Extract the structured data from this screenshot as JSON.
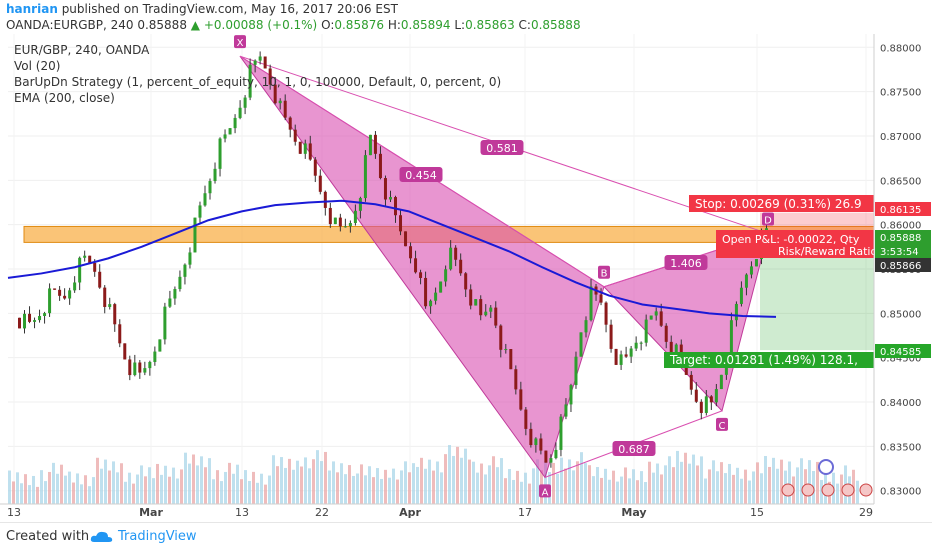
{
  "header": {
    "author": "hanrian",
    "published_text": "published on TradingView.com, May 16, 2017 20:06 EST",
    "symbol": "OANDA:EURGBP, 240",
    "last": "0.85888",
    "change": "+0.00088 (+0.1%)",
    "o_label": "O:",
    "o_value": "0.85876",
    "h_label": "H:",
    "h_value": "0.85894",
    "l_label": "L:",
    "l_value": "0.85863",
    "c_label": "C:",
    "c_value": "0.85888"
  },
  "legend": {
    "line1": "EUR/GBP, 240, OANDA",
    "line2": "Vol (20)",
    "line3": "BarUpDn Strategy (1, percent_of_equity, 10, 1, 0, 100000, Default, 0, percent, 0)",
    "line4": "EMA (200, close)"
  },
  "footer": {
    "made": "Created with",
    "brand": "TradingView"
  },
  "colors": {
    "pattern_fill": "#d94fb0",
    "ema": "#1a1ad6",
    "zone": "#f8b04a",
    "stop": "#f23645",
    "target": "#26a629",
    "candle_up": "#2e9e2e",
    "candle_down": "#8b1a1a"
  },
  "chart_data": {
    "type": "candlestick",
    "x_ticks": [
      "13",
      "Mar",
      "13",
      "22",
      "Apr",
      "17",
      "May",
      "15",
      "29"
    ],
    "y_ticks": [
      "0.88000",
      "0.87500",
      "0.87000",
      "0.86500",
      "0.86000",
      "0.85500",
      "0.85000",
      "0.84500",
      "0.84000",
      "0.83500",
      "0.83000"
    ],
    "ylim": [
      0.8285,
      0.8815
    ],
    "price_tags": [
      "0.86135",
      "0.85888",
      "3:53:54",
      "0.85866",
      "0.84585"
    ],
    "pattern_points": [
      {
        "label": "X",
        "price": 0.879
      },
      {
        "label": "A",
        "price": 0.8315
      },
      {
        "label": "B",
        "price": 0.853
      },
      {
        "label": "C",
        "price": 0.839
      },
      {
        "label": "D",
        "price": 0.859
      }
    ],
    "ratios": [
      "0.454",
      "0.581",
      "1.406",
      "0.687"
    ],
    "zone": [
      0.858,
      0.8598
    ],
    "trade": {
      "stop_text": "Stop: 0.00269 (0.31%) 26.9",
      "open_text": "Open P&L: -0.00022, Qty",
      "rr_text": "Risk/Reward Ratio:",
      "target_text": "Target: 0.01281 (1.49%) 128.1,",
      "entry": 0.85866,
      "stop": 0.86135,
      "target": 0.84585
    },
    "ohlc_close_path": [
      0.8495,
      0.8485,
      0.8505,
      0.852,
      0.8515,
      0.8545,
      0.856,
      0.8548,
      0.851,
      0.847,
      0.844,
      0.8425,
      0.845,
      0.849,
      0.852,
      0.856,
      0.86,
      0.864,
      0.868,
      0.87,
      0.8735,
      0.877,
      0.879,
      0.876,
      0.872,
      0.87,
      0.868,
      0.865,
      0.862,
      0.859,
      0.86,
      0.864,
      0.87,
      0.865,
      0.861,
      0.858,
      0.856,
      0.85,
      0.853,
      0.857,
      0.855,
      0.852,
      0.849,
      0.851,
      0.846,
      0.842,
      0.838,
      0.835,
      0.833,
      0.836,
      0.84,
      0.848,
      0.852,
      0.851,
      0.846,
      0.844,
      0.847,
      0.848,
      0.85,
      0.847,
      0.845,
      0.842,
      0.84,
      0.8395,
      0.844,
      0.849,
      0.854,
      0.857,
      0.859
    ],
    "ema_path": [
      0.854,
      0.8545,
      0.8552,
      0.8562,
      0.8575,
      0.859,
      0.8605,
      0.8615,
      0.8622,
      0.8625,
      0.8627,
      0.8623,
      0.8615,
      0.86,
      0.8585,
      0.857,
      0.8552,
      0.8535,
      0.852,
      0.851,
      0.8505,
      0.85,
      0.8497,
      0.8496
    ],
    "volume_level": [
      0.3,
      0.45,
      0.35,
      0.55,
      0.4,
      0.5,
      0.65,
      0.45,
      0.38,
      0.6,
      0.7,
      0.55,
      0.42,
      0.48,
      0.62,
      0.8,
      0.58,
      0.4,
      0.52,
      0.66,
      0.44,
      0.36,
      0.58,
      0.72,
      0.5,
      0.46,
      0.62,
      0.54,
      0.4,
      0.35
    ]
  }
}
